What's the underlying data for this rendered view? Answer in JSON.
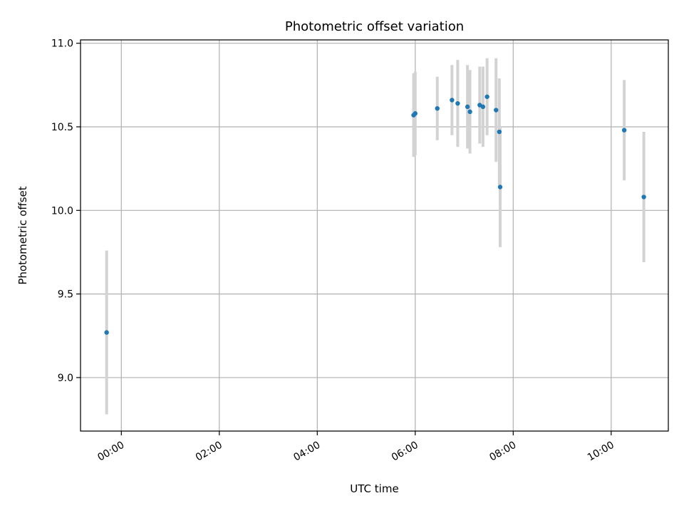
{
  "chart_data": {
    "type": "scatter",
    "title": "Photometric offset variation",
    "xlabel": "UTC time",
    "ylabel": "Photometric offset",
    "x_ticks": [
      "00:00",
      "02:00",
      "04:00",
      "06:00",
      "08:00",
      "10:00"
    ],
    "y_ticks": [
      "9.0",
      "9.5",
      "10.0",
      "10.5",
      "11.0"
    ],
    "xlim": [
      "-00:50",
      "11:10"
    ],
    "ylim": [
      8.68,
      11.02
    ],
    "grid": true,
    "series": [
      {
        "color": "#1f77b4",
        "errorbar_color": "#d3d3d3",
        "points": [
          {
            "x": "-00:18",
            "y": 9.27,
            "yerr": 0.49
          },
          {
            "x": "05:58",
            "y": 10.57,
            "yerr": 0.25
          },
          {
            "x": "06:00",
            "y": 10.58,
            "yerr": 0.25
          },
          {
            "x": "06:27",
            "y": 10.61,
            "yerr": 0.19
          },
          {
            "x": "06:45",
            "y": 10.66,
            "yerr": 0.21
          },
          {
            "x": "06:52",
            "y": 10.64,
            "yerr": 0.26
          },
          {
            "x": "07:04",
            "y": 10.62,
            "yerr": 0.25
          },
          {
            "x": "07:07",
            "y": 10.59,
            "yerr": 0.25
          },
          {
            "x": "07:19",
            "y": 10.63,
            "yerr": 0.23
          },
          {
            "x": "07:23",
            "y": 10.62,
            "yerr": 0.24
          },
          {
            "x": "07:28",
            "y": 10.68,
            "yerr": 0.23
          },
          {
            "x": "07:39",
            "y": 10.6,
            "yerr": 0.31
          },
          {
            "x": "07:43",
            "y": 10.47,
            "yerr": 0.32
          },
          {
            "x": "07:44",
            "y": 10.14,
            "yerr": 0.36
          },
          {
            "x": "10:16",
            "y": 10.48,
            "yerr": 0.3
          },
          {
            "x": "10:40",
            "y": 10.08,
            "yerr": 0.39
          }
        ]
      }
    ]
  }
}
